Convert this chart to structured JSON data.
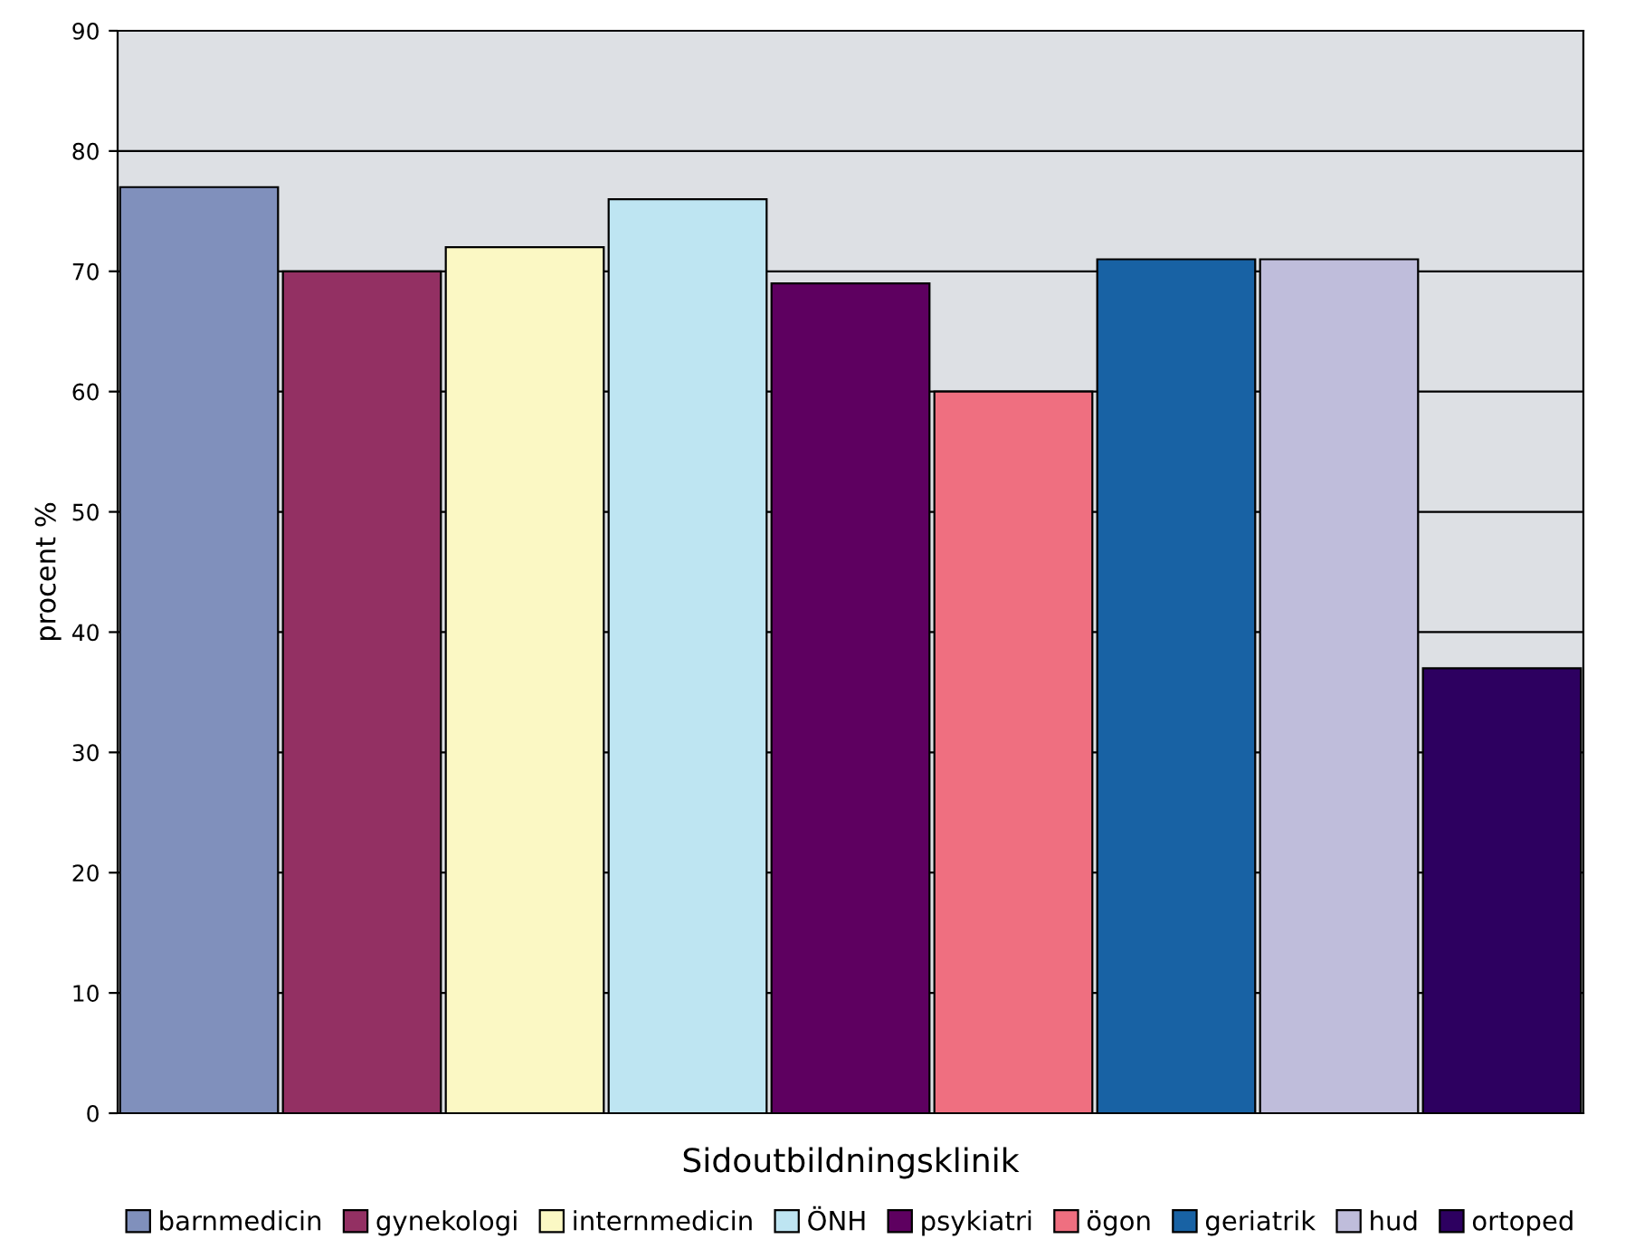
{
  "chart_data": {
    "type": "bar",
    "xlabel": "Sidoutbildningsklinik",
    "ylabel": "procent %",
    "categories": [
      null
    ],
    "series": [
      {
        "name": "barnmedicin",
        "color": "#8090bc",
        "values": [
          77
        ]
      },
      {
        "name": "gynekologi",
        "color": "#933063",
        "values": [
          70
        ]
      },
      {
        "name": "internmedicin",
        "color": "#fbf8c4",
        "values": [
          72
        ]
      },
      {
        "name": "ÖNH",
        "color": "#bee5f2",
        "values": [
          76
        ]
      },
      {
        "name": "psykiatri",
        "color": "#5e0060",
        "values": [
          69
        ]
      },
      {
        "name": "ögon",
        "color": "#ef6f80",
        "values": [
          60
        ]
      },
      {
        "name": "geriatrik",
        "color": "#1862a4",
        "values": [
          71
        ]
      },
      {
        "name": "hud",
        "color": "#bfbddb",
        "values": [
          71
        ]
      },
      {
        "name": "ortoped",
        "color": "#2d0060",
        "values": [
          37
        ]
      }
    ],
    "ylim": [
      0,
      90
    ],
    "yticks": [
      0,
      10,
      20,
      30,
      40,
      50,
      60,
      70,
      80,
      90
    ],
    "grid": "y",
    "legend": "bottom"
  }
}
